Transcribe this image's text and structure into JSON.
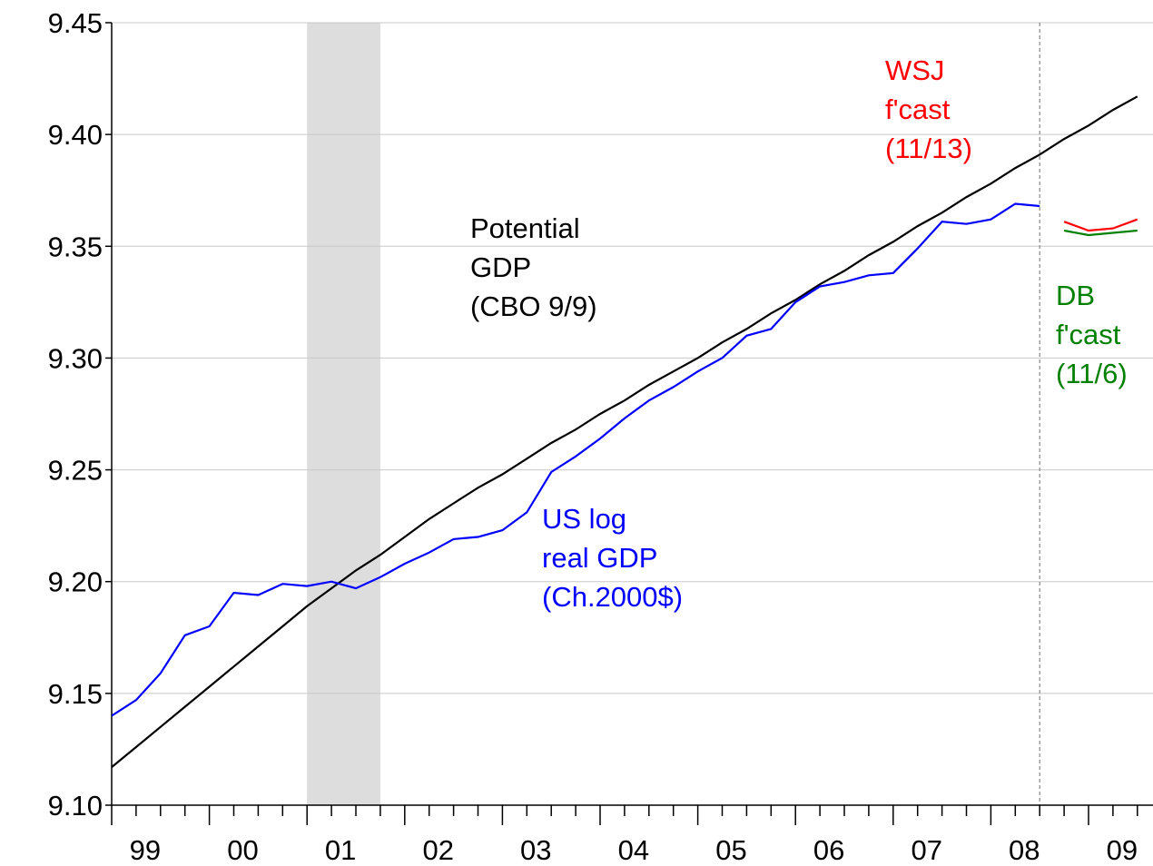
{
  "chart_data": {
    "type": "line",
    "categories": [
      null,
      "99",
      null,
      null,
      null,
      "00",
      null,
      null,
      null,
      "01",
      null,
      null,
      null,
      "02",
      null,
      null,
      null,
      "03",
      null,
      null,
      null,
      "04",
      null,
      null,
      null,
      "05",
      null,
      null,
      null,
      "06",
      null,
      null,
      null,
      "07",
      null,
      null,
      null,
      "08",
      null,
      null,
      null,
      "09",
      null
    ],
    "series": [
      {
        "name": "Potential GDP",
        "color": "#000000",
        "values": [
          9.117,
          9.126,
          9.135,
          9.144,
          9.153,
          9.162,
          9.171,
          9.18,
          9.189,
          9.197,
          9.205,
          9.212,
          9.22,
          9.228,
          9.235,
          9.242,
          9.248,
          9.255,
          9.262,
          9.268,
          9.275,
          9.281,
          9.288,
          9.294,
          9.3,
          9.307,
          9.313,
          9.32,
          9.326,
          9.333,
          9.339,
          9.346,
          9.352,
          9.359,
          9.365,
          9.372,
          9.378,
          9.385,
          9.391,
          9.398,
          9.404,
          9.411,
          9.417
        ]
      },
      {
        "name": "US log real GDP",
        "color": "#0000ff",
        "values": [
          9.14,
          9.147,
          9.159,
          9.176,
          9.18,
          9.195,
          9.194,
          9.199,
          9.198,
          9.2,
          9.197,
          9.202,
          9.208,
          9.213,
          9.219,
          9.22,
          9.223,
          9.231,
          9.249,
          9.256,
          9.264,
          9.273,
          9.281,
          9.287,
          9.294,
          9.3,
          9.31,
          9.313,
          9.325,
          9.332,
          9.334,
          9.337,
          9.338,
          9.349,
          9.361,
          9.36,
          9.362,
          9.369,
          9.368,
          null,
          null,
          null,
          null
        ]
      },
      {
        "name": "WSJ f'cast",
        "color": "#ff0000",
        "values": [
          null,
          null,
          null,
          null,
          null,
          null,
          null,
          null,
          null,
          null,
          null,
          null,
          null,
          null,
          null,
          null,
          null,
          null,
          null,
          null,
          null,
          null,
          null,
          null,
          null,
          null,
          null,
          null,
          null,
          null,
          null,
          null,
          null,
          null,
          null,
          null,
          null,
          null,
          null,
          9.361,
          9.357,
          9.358,
          9.362
        ]
      },
      {
        "name": "DB f'cast",
        "color": "#008000",
        "values": [
          null,
          null,
          null,
          null,
          null,
          null,
          null,
          null,
          null,
          null,
          null,
          null,
          null,
          null,
          null,
          null,
          null,
          null,
          null,
          null,
          null,
          null,
          null,
          null,
          null,
          null,
          null,
          null,
          null,
          null,
          null,
          null,
          null,
          null,
          null,
          null,
          null,
          null,
          null,
          9.357,
          9.355,
          9.356,
          9.357
        ]
      }
    ],
    "ylim": [
      9.1,
      9.45
    ],
    "yticks": [
      {
        "value": 9.1,
        "label": "9.10"
      },
      9.15,
      {
        "value": 9.2,
        "label": "9.20"
      },
      9.25,
      {
        "value": 9.3,
        "label": "9.30"
      },
      9.35,
      {
        "value": 9.4,
        "label": "9.40"
      },
      9.45
    ],
    "grid": true,
    "recession": {
      "start": 8,
      "end": 11
    },
    "vline": 38,
    "annotations": [
      {
        "lines": [
          "Potential",
          "GDP",
          "(CBO 9/9)"
        ],
        "color": "#000000"
      },
      {
        "lines": [
          "US log",
          "real GDP",
          "(Ch.2000$)"
        ],
        "color": "#0000ff"
      },
      {
        "lines": [
          "WSJ",
          "f'cast",
          "(11/13)"
        ],
        "color": "#ff0000"
      },
      {
        "lines": [
          "DB",
          "f'cast",
          "(11/6)"
        ],
        "color": "#008000"
      }
    ]
  }
}
